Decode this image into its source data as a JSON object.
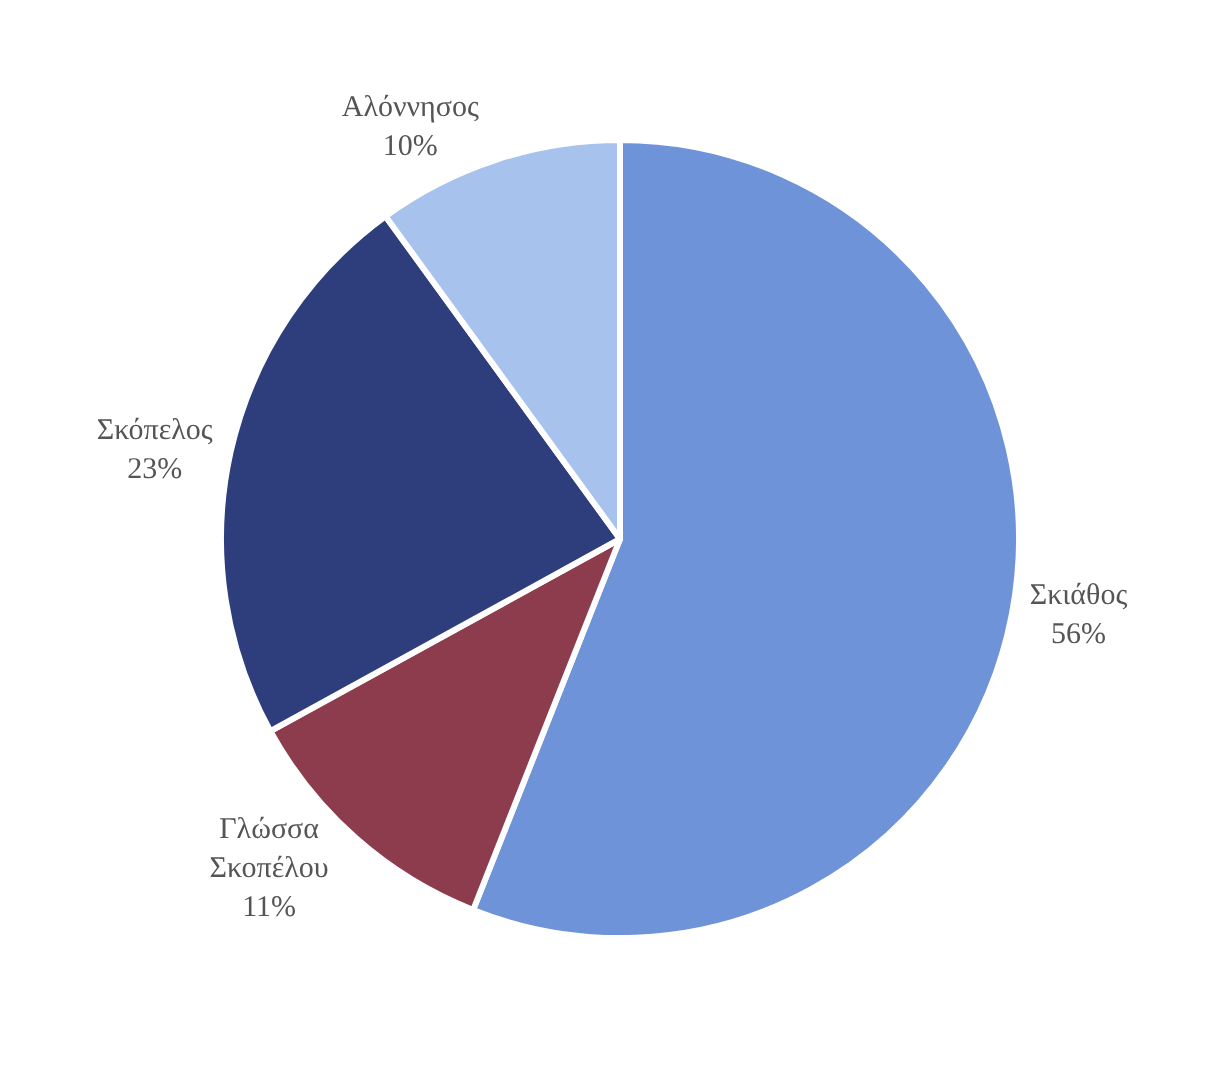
{
  "chart_data": {
    "type": "pie",
    "categories": [
      "Σκιάθος",
      "Γλώσσα Σκοπέλου",
      "Σκόπελος",
      "Αλόννησος"
    ],
    "values": [
      56,
      11,
      23,
      10
    ],
    "value_labels": [
      "56%",
      "11%",
      "23%",
      "10%"
    ],
    "colors": [
      "#6f93d8",
      "#8c3c4c",
      "#2e3d7c",
      "#a8c2ee"
    ],
    "legend": false
  }
}
